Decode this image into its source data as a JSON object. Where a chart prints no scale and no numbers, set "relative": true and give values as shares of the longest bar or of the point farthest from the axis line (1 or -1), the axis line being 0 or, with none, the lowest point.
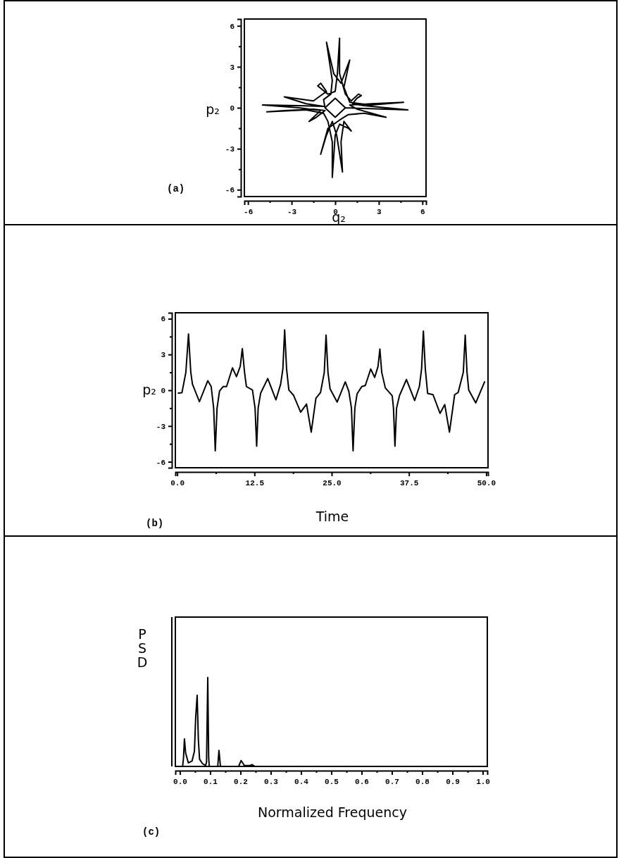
{
  "chart_data": [
    {
      "type": "line",
      "xlabel": "q₂",
      "ylabel": "p₂",
      "annotations": [
        "(a)"
      ],
      "xlim": [
        -6.25,
        6.25
      ],
      "ylim": [
        -6.5,
        6.5
      ],
      "xticks": [
        -6,
        {
          "value": -4.5,
          "label": null
        },
        -3,
        {
          "value": -1.5,
          "label": null
        },
        0,
        {
          "value": 1.5,
          "label": null
        },
        3,
        {
          "value": 4.5,
          "label": null
        },
        6
      ],
      "yticks": [
        -6,
        {
          "value": -4.5,
          "label": null
        },
        -3,
        {
          "value": -1.5,
          "label": null
        },
        0,
        {
          "value": 1.5,
          "label": null
        },
        3,
        {
          "value": 4.5,
          "label": null
        },
        6
      ],
      "series": [
        {
          "color": "#000000",
          "x": [
            0.7,
            2,
            3.5,
            5,
            3.5,
            2,
            1.2,
            1.5,
            1.8,
            1.6,
            1.1,
            0.7,
            0.3,
            0.3,
            0.15,
            0,
            -0.5,
            -1.2,
            -1.0,
            -0.6,
            -1.5,
            -3.5,
            -2,
            -0.8,
            -2.5,
            -5,
            -2.5,
            -1,
            -1.6,
            -1.8,
            -1.3,
            -0.7,
            -1.5,
            -3.5,
            -4.7,
            -2,
            -0.8,
            -0.5,
            -0.2,
            -0.2,
            0,
            0.3,
            0.9,
            1.1,
            0.6,
            0.4,
            0.5,
            0.1,
            -0.2,
            -0.6,
            -1.0,
            -0.5,
            0.3,
            0.9,
            2,
            3.5,
            1.5,
            1.0,
            2.5,
            4.7,
            2.5,
            1.0,
            0.6,
            1.0,
            0.4,
            -0.1,
            -0.6,
            -0.2,
            -0.3,
            -0.8,
            -0.7,
            0,
            0.7,
            0,
            -0.7
          ],
          "values": [
            0.0,
            -0.05,
            -0.1,
            -0.15,
            0.0,
            0.15,
            0.3,
            0.7,
            0.9,
            1.0,
            0.5,
            1.0,
            2.5,
            5.1,
            2.5,
            1.2,
            1.0,
            1.6,
            1.8,
            1.2,
            0.5,
            0.8,
            0.3,
            0.1,
            0.15,
            0.2,
            0.0,
            -0.2,
            -0.8,
            -1.0,
            -0.7,
            -0.2,
            -0.1,
            -0.2,
            -0.3,
            -0.15,
            -0.4,
            -1.0,
            -2.5,
            -5.1,
            -2,
            -1.2,
            -1.5,
            -1.7,
            -1.0,
            -2.5,
            -4.7,
            -2.0,
            -1.0,
            -2.0,
            -3.4,
            -1.5,
            -0.9,
            -0.5,
            -0.4,
            -0.7,
            -0.1,
            0.2,
            0.3,
            0.4,
            0.2,
            0.4,
            1.5,
            3.5,
            1.8,
            2.5,
            4.8,
            2.0,
            1.0,
            0.6,
            0.0,
            -0.7,
            0.0,
            0.7,
            0.0
          ]
        }
      ]
    },
    {
      "type": "line",
      "xlabel": "Time",
      "ylabel": "p₂",
      "annotations": [
        "(b)"
      ],
      "xlim": [
        -0.3,
        50.3
      ],
      "ylim": [
        -6.5,
        6.5
      ],
      "xticks": [
        {
          "value": 0,
          "label": "0.0"
        },
        {
          "value": 6.25,
          "label": null
        },
        12.5,
        {
          "value": 18.75,
          "label": null
        },
        {
          "value": 25,
          "label": "25.0"
        },
        {
          "value": 31.25,
          "label": null
        },
        37.5,
        {
          "value": 43.75,
          "label": null
        },
        {
          "value": 50,
          "label": "50.0"
        }
      ],
      "yticks": [
        -6,
        {
          "value": -4.5,
          "label": null
        },
        -3,
        {
          "value": -1.5,
          "label": null
        },
        0,
        {
          "value": 1.5,
          "label": null
        },
        3,
        {
          "value": 4.5,
          "label": null
        },
        6
      ],
      "series": [
        {
          "color": "#000000",
          "x": [
            0.19,
            0.77,
            1.4,
            1.83,
            2.2,
            2.47,
            3.6,
            4.95,
            5.5,
            5.9,
            6.16,
            6.45,
            6.85,
            7.42,
            7.99,
            8.94,
            9.59,
            10.2,
            10.54,
            10.9,
            11.2,
            12.18,
            12.6,
            12.86,
            13.1,
            13.5,
            14.65,
            15.98,
            16.74,
            17.1,
            17.39,
            17.7,
            18.07,
            18.84,
            19.98,
            20.93,
            21.69,
            22.45,
            23.2,
            23.8,
            24.09,
            24.4,
            24.74,
            25.88,
            27.2,
            27.77,
            28.2,
            28.46,
            28.75,
            29.11,
            29.87,
            30.44,
            31.32,
            31.96,
            32.5,
            32.8,
            33.1,
            33.68,
            34.8,
            35.0,
            35.24,
            35.5,
            35.96,
            37.1,
            38.43,
            39.19,
            39.55,
            39.84,
            40.15,
            40.53,
            41.4,
            42.54,
            43.3,
            44.06,
            44.9,
            45.47,
            46.3,
            46.61,
            46.9,
            47.18,
            48.32,
            49.74
          ],
          "values": [
            -0.24,
            -0.2,
            1.5,
            4.72,
            1.5,
            0.51,
            -0.96,
            0.8,
            0.31,
            -1.5,
            -5.08,
            -1.5,
            -0.06,
            0.31,
            0.31,
            1.88,
            1.14,
            2.0,
            3.49,
            1.5,
            0.31,
            0.02,
            -1.5,
            -4.69,
            -1.5,
            -0.25,
            0.98,
            -0.8,
            0.51,
            1.8,
            5.06,
            1.8,
            0.02,
            -0.43,
            -1.84,
            -1.16,
            -3.51,
            -0.67,
            -0.18,
            1.5,
            4.63,
            1.5,
            0.12,
            -0.99,
            0.7,
            -0.08,
            -1.5,
            -5.08,
            -1.5,
            -0.3,
            0.31,
            0.4,
            1.78,
            1.08,
            2.0,
            3.45,
            1.5,
            0.2,
            -0.47,
            -1.5,
            -4.69,
            -1.5,
            -0.47,
            0.9,
            -0.86,
            0.31,
            1.8,
            4.96,
            1.8,
            -0.27,
            -0.37,
            -1.94,
            -1.2,
            -3.51,
            -0.37,
            -0.18,
            1.5,
            4.63,
            1.5,
            0.02,
            -1.06,
            0.7
          ]
        }
      ]
    },
    {
      "type": "line",
      "xlabel": "Normalized Frequency",
      "ylabel": "PSD",
      "annotations": [
        "(c)"
      ],
      "relative": true,
      "tick_labels": "x",
      "xlim": [
        -0.015,
        1.015
      ],
      "xticks": [
        {
          "value": 0,
          "label": "0.0"
        },
        {
          "value": 0.05,
          "label": null
        },
        0.1,
        {
          "value": 0.15,
          "label": null
        },
        0.2,
        {
          "value": 0.25,
          "label": null
        },
        0.3,
        {
          "value": 0.35,
          "label": null
        },
        0.4,
        {
          "value": 0.45,
          "label": null
        },
        0.5,
        {
          "value": 0.55,
          "label": null
        },
        0.6,
        {
          "value": 0.65,
          "label": null
        },
        0.7,
        {
          "value": 0.75,
          "label": null
        },
        0.8,
        {
          "value": 0.85,
          "label": null
        },
        0.9,
        {
          "value": 0.95,
          "label": null
        },
        {
          "value": 1,
          "label": "1.0"
        }
      ],
      "series": [
        {
          "color": "#000000",
          "x": [
            0.009,
            0.012,
            0.015,
            0.019,
            0.028,
            0.04,
            0.048,
            0.052,
            0.057,
            0.061,
            0.065,
            0.075,
            0.085,
            0.088,
            0.092,
            0.095,
            0.097,
            0.125,
            0.129,
            0.134,
            0.194,
            0.202,
            0.213,
            0.232,
            0.238,
            0.248,
            1.0
          ],
          "values": [
            0,
            0.1,
            0.31,
            0.15,
            0.04,
            0.06,
            0.17,
            0.54,
            0.8,
            0.3,
            0.08,
            0.03,
            0.01,
            0.05,
            1.0,
            0.1,
            0,
            0,
            0.18,
            0,
            0,
            0.066,
            0.01,
            0.01,
            0.02,
            0,
            0
          ]
        }
      ]
    }
  ]
}
